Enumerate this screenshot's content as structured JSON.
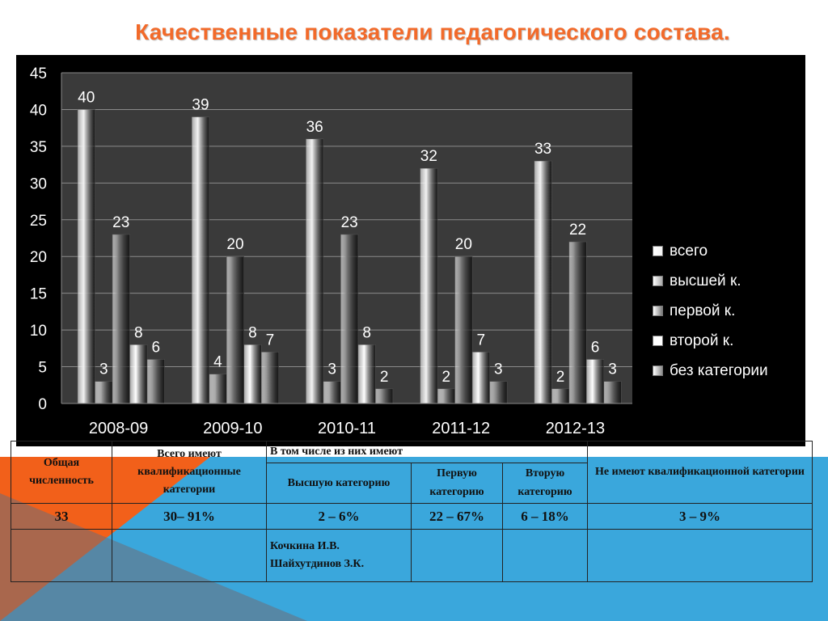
{
  "title": "Качественные показатели педагогического состава.",
  "colors": {
    "orange": "#f26a2a",
    "blue_band": "#3aa7dc",
    "chart_bg": "#000000",
    "plot_bg": "#3a3a3a",
    "series": [
      "#f2f2f2",
      "#a8a8a8",
      "#7a7a7a",
      "#ffffff",
      "#8c8c8c"
    ]
  },
  "chart_data": {
    "type": "bar",
    "categories": [
      "2008-09",
      "2009-10",
      "2010-11",
      "2011-12",
      "2012-13"
    ],
    "series": [
      {
        "name": "всего",
        "values": [
          40,
          39,
          36,
          32,
          33
        ]
      },
      {
        "name": "высшей к.",
        "values": [
          3,
          4,
          3,
          2,
          2
        ]
      },
      {
        "name": "первой к.",
        "values": [
          23,
          20,
          23,
          20,
          22
        ]
      },
      {
        "name": "второй к.",
        "values": [
          8,
          8,
          8,
          7,
          6
        ]
      },
      {
        "name": "без категории",
        "values": [
          6,
          7,
          2,
          3,
          3
        ]
      }
    ],
    "ylim": [
      0,
      45
    ],
    "yticks": [
      0,
      5,
      10,
      15,
      20,
      25,
      30,
      35,
      40,
      45
    ],
    "grid": true,
    "legend": "right",
    "data_labels": true
  },
  "table": {
    "h_total": "Общая численность",
    "h_categories": "Всего имеют квалификационные категории",
    "h_of_them": "В том числе из них имеют",
    "h_none": "Не имеют квалификационной категории",
    "h_highest": "Высшую категорию",
    "h_first": "Первую категорию",
    "h_second": "Вторую категорию",
    "v_total": "33",
    "v_categories": "30– 91%",
    "v_highest": "2 – 6%",
    "v_first": "22 – 67%",
    "v_second": "6 – 18%",
    "v_none": "3 – 9%",
    "names_line1": "Кочкина  И.В.",
    "names_line2": "Шайхутдинов З.К."
  }
}
